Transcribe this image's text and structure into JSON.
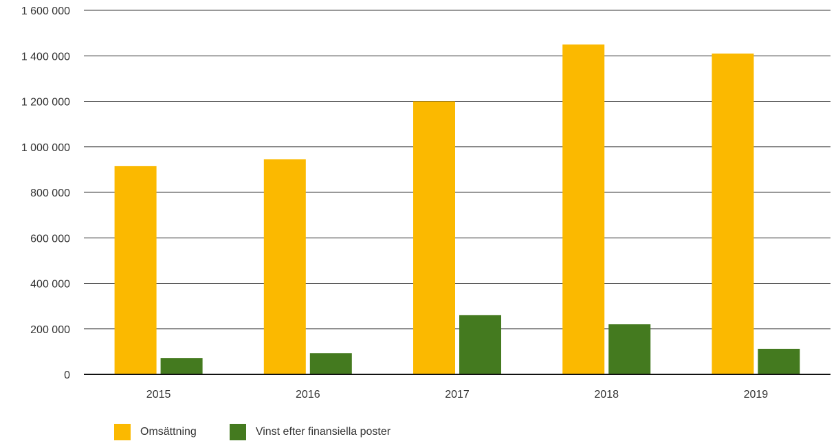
{
  "chart_data": {
    "type": "bar",
    "categories": [
      "2015",
      "2016",
      "2017",
      "2018",
      "2019"
    ],
    "series": [
      {
        "name": "Omsättning",
        "color": "#FBB900",
        "values": [
          915000,
          945000,
          1200000,
          1450000,
          1410000
        ]
      },
      {
        "name": "Vinst efter finansiella poster",
        "color": "#447A1F",
        "values": [
          72000,
          93000,
          260000,
          220000,
          112000
        ]
      }
    ],
    "yticks": [
      "0",
      "200 000",
      "400 000",
      "600 000",
      "800 000",
      "1 000 000",
      "1 200 000",
      "1 400 000",
      "1 600 000"
    ],
    "ylim": [
      0,
      1600000
    ],
    "grid": true,
    "legend_position": "bottom-left",
    "title": "",
    "xlabel": "",
    "ylabel": ""
  },
  "legend": {
    "items": [
      {
        "label": "Omsättning",
        "color": "#FBB900"
      },
      {
        "label": "Vinst efter finansiella poster",
        "color": "#447A1F"
      }
    ]
  }
}
